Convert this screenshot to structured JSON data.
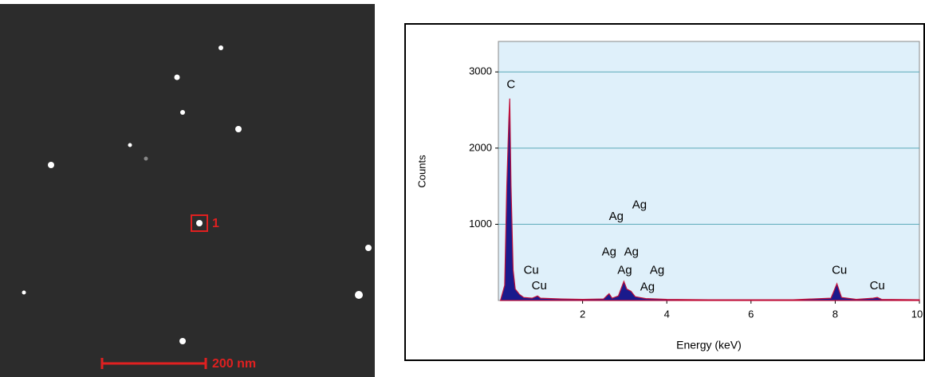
{
  "image": {
    "marker": "1",
    "scale_bar": "200 nm"
  },
  "chart_data": {
    "type": "area",
    "xlabel": "Energy (keV)",
    "ylabel": "Counts",
    "color": "#1a1a8c",
    "edge_color": "#c0103a",
    "x": [
      0.05,
      0.15,
      0.2,
      0.25,
      0.27,
      0.3,
      0.35,
      0.4,
      0.5,
      0.6,
      0.8,
      0.93,
      1.0,
      1.5,
      2.0,
      2.5,
      2.63,
      2.7,
      2.85,
      2.98,
      3.05,
      3.15,
      3.25,
      3.35,
      3.5,
      4.0,
      5.0,
      6.0,
      7.0,
      7.9,
      8.04,
      8.15,
      8.5,
      8.9,
      9.0,
      9.1,
      10.0
    ],
    "values": [
      0,
      200,
      1500,
      2400,
      2650,
      1500,
      400,
      150,
      80,
      40,
      30,
      60,
      30,
      20,
      15,
      20,
      90,
      30,
      60,
      250,
      150,
      120,
      50,
      40,
      25,
      15,
      10,
      10,
      10,
      30,
      220,
      40,
      15,
      30,
      40,
      15,
      10
    ],
    "xlim": [
      0,
      10
    ],
    "ylim": [
      0,
      3400
    ],
    "xticks": [
      2,
      4,
      6,
      8,
      10
    ],
    "yticks": [
      1000,
      2000,
      3000
    ],
    "grid": true,
    "annotations": [
      {
        "text": "C",
        "x": 0.3,
        "y": 2830
      },
      {
        "text": "Ag",
        "x": 2.8,
        "y": 1100
      },
      {
        "text": "Ag",
        "x": 3.35,
        "y": 1250
      },
      {
        "text": "Ag",
        "x": 2.63,
        "y": 630
      },
      {
        "text": "Ag",
        "x": 3.16,
        "y": 630
      },
      {
        "text": "Cu",
        "x": 0.78,
        "y": 390
      },
      {
        "text": "Ag",
        "x": 3.0,
        "y": 390
      },
      {
        "text": "Ag",
        "x": 3.77,
        "y": 390
      },
      {
        "text": "Cu",
        "x": 0.97,
        "y": 190
      },
      {
        "text": "Ag",
        "x": 3.54,
        "y": 170
      },
      {
        "text": "Cu",
        "x": 8.1,
        "y": 390
      },
      {
        "text": "Cu",
        "x": 9.0,
        "y": 190
      }
    ]
  }
}
